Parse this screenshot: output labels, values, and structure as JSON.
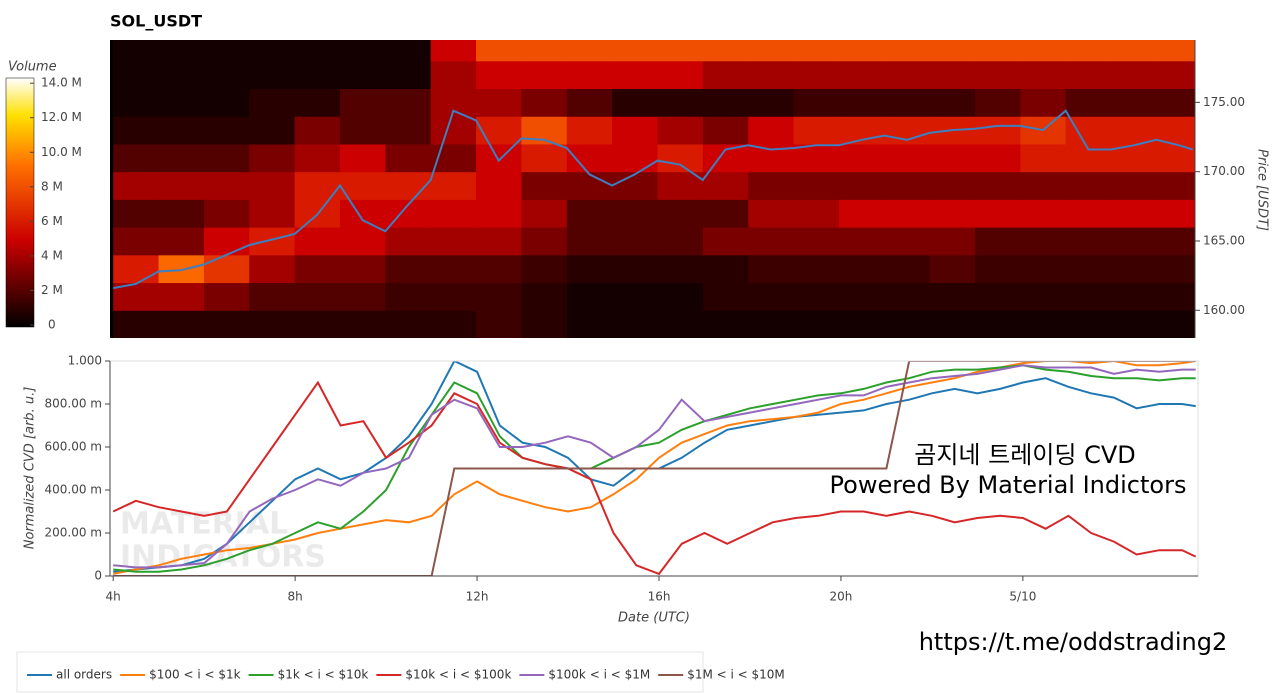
{
  "chart_data": [
    {
      "type": "heatmap",
      "title": "SOL_USDT",
      "y_label": "Price [USDT]",
      "xlim": [
        3.93,
        27.85
      ],
      "ylim": [
        158,
        179.5
      ],
      "yticks": [
        {
          "value": 160,
          "label": "160.00"
        },
        {
          "value": 165,
          "label": "165.00"
        },
        {
          "value": 170,
          "label": "170.00"
        },
        {
          "value": 175,
          "label": "175.00"
        }
      ],
      "time_bins": [
        4,
        5,
        6,
        7,
        8,
        9,
        10,
        11,
        12,
        13,
        14,
        15,
        16,
        17,
        18,
        19,
        20,
        21,
        22,
        23,
        24,
        25,
        26,
        27,
        28
      ],
      "price_bins": [
        158,
        160,
        162,
        164,
        166,
        168,
        170,
        172,
        174,
        176,
        178,
        180
      ],
      "volume": [
        [
          1,
          1,
          1,
          1,
          1,
          1,
          1,
          1,
          1.5,
          1,
          0.5,
          0.5,
          0.5,
          0.5,
          0.5,
          0.5,
          0.5,
          0.5,
          0.5,
          0.5,
          0.5,
          0.5,
          0.5,
          0.5
        ],
        [
          4,
          4,
          3,
          2,
          2,
          2,
          1.5,
          1.5,
          1.5,
          1,
          0.5,
          0.5,
          0.5,
          1,
          1,
          1,
          1,
          1,
          1,
          1,
          1,
          1,
          1,
          1
        ],
        [
          6,
          9,
          7,
          4,
          3,
          3,
          2,
          2,
          2,
          1.5,
          1,
          1,
          1,
          1,
          1.5,
          1.5,
          1.5,
          1.5,
          2,
          1.5,
          1.5,
          1.5,
          1.5,
          1.5
        ],
        [
          3,
          3,
          5,
          6,
          5,
          5,
          4,
          4,
          4,
          3,
          2,
          2,
          2,
          3,
          3,
          3,
          3,
          3,
          3,
          2,
          2,
          2,
          2,
          2
        ],
        [
          2,
          2,
          3,
          4,
          6,
          5,
          5,
          5,
          5,
          4,
          2,
          2,
          2,
          2,
          4,
          4,
          5,
          5,
          5,
          5,
          5,
          5,
          5,
          5
        ],
        [
          4,
          4,
          4,
          4,
          6,
          6,
          6,
          6,
          5,
          3,
          3,
          3,
          4,
          4,
          3,
          3,
          3,
          3,
          3,
          3,
          3,
          3,
          3,
          3
        ],
        [
          2,
          2,
          2,
          3,
          4,
          5,
          3,
          3,
          5,
          6,
          5,
          5,
          6,
          5,
          5,
          5,
          5,
          5,
          5,
          5,
          6,
          6,
          6,
          6
        ],
        [
          1,
          1,
          1,
          1,
          3,
          2,
          2,
          4,
          6,
          8,
          6,
          5,
          4,
          3,
          5,
          6,
          6,
          6,
          6,
          6,
          7,
          6,
          6,
          6
        ],
        [
          0.5,
          0.5,
          0.5,
          1,
          1,
          2,
          2,
          4,
          4,
          3,
          2,
          1,
          1,
          1,
          1,
          1.5,
          1.5,
          1.5,
          1.5,
          2,
          3,
          2,
          2,
          2
        ],
        [
          0.5,
          0.5,
          0.5,
          0.5,
          0.5,
          0.5,
          0.5,
          4,
          5,
          5,
          5,
          5,
          5,
          4,
          4,
          4,
          4,
          4,
          4,
          4,
          4,
          4,
          4,
          4
        ],
        [
          0.5,
          0.5,
          0.5,
          0.5,
          0.5,
          0.5,
          0.5,
          5,
          8,
          8,
          8,
          8,
          8,
          8,
          8,
          8,
          8,
          8,
          8,
          8,
          8,
          8,
          8,
          8
        ]
      ],
      "colorbar": {
        "label": "Volume",
        "lim": [
          0,
          14.3
        ],
        "ticks": [
          {
            "value": 0,
            "label": "0"
          },
          {
            "value": 2,
            "label": "2 M"
          },
          {
            "value": 4,
            "label": "4 M"
          },
          {
            "value": 6,
            "label": "6 M"
          },
          {
            "value": 8,
            "label": "8 M"
          },
          {
            "value": 10,
            "label": "10.0 M"
          },
          {
            "value": 12,
            "label": "12.0 M"
          },
          {
            "value": 14,
            "label": "14.0 M"
          }
        ]
      },
      "x": [
        4,
        4.5,
        5,
        5.5,
        6,
        6.5,
        7,
        7.5,
        8,
        8.5,
        9,
        9.5,
        10,
        10.5,
        11,
        11.5,
        12,
        12.5,
        13,
        13.5,
        14,
        14.5,
        15,
        15.5,
        16,
        16.5,
        17,
        17.5,
        18,
        18.5,
        19,
        19.5,
        20,
        20.5,
        21,
        21.5,
        22,
        22.5,
        23,
        23.5,
        24,
        24.5,
        25,
        25.5,
        26,
        26.5,
        27,
        27.5,
        27.8
      ],
      "series": [
        {
          "color": "#3d7fc1",
          "values": [
            161.6,
            161.9,
            162.8,
            162.9,
            163.3,
            164.0,
            164.7,
            165.1,
            165.5,
            166.9,
            169.0,
            166.5,
            165.7,
            167.6,
            169.4,
            174.4,
            173.7,
            170.8,
            172.4,
            172.3,
            171.7,
            169.8,
            169.0,
            169.8,
            170.8,
            170.5,
            169.4,
            171.6,
            171.9,
            171.6,
            171.7,
            171.9,
            171.9,
            172.3,
            172.6,
            172.3,
            172.8,
            173.0,
            173.1,
            173.3,
            173.3,
            173.0,
            174.4,
            171.6,
            171.6,
            171.9,
            172.3,
            171.9,
            171.6
          ]
        }
      ]
    },
    {
      "type": "line",
      "x_label": "Date (UTC)",
      "y_label": "Normalized CVD [arb. u.]",
      "xlim": [
        3.93,
        27.85
      ],
      "ylim": [
        0,
        1
      ],
      "xticks": [
        {
          "value": 4,
          "label": "4h"
        },
        {
          "value": 8,
          "label": "8h"
        },
        {
          "value": 12,
          "label": "12h"
        },
        {
          "value": 16,
          "label": "16h"
        },
        {
          "value": 20,
          "label": "20h"
        },
        {
          "value": 24,
          "label": "5/10"
        }
      ],
      "yticks": [
        0,
        {
          "value": 0.2,
          "label": "200.00 m"
        },
        {
          "value": 0.4,
          "label": "400.00 m"
        },
        {
          "value": 0.6,
          "label": "600.00 m"
        },
        {
          "value": 0.8,
          "label": "800.00 m"
        },
        {
          "value": 1,
          "label": "1.000"
        }
      ],
      "x": [
        4,
        4.5,
        5,
        5.5,
        6,
        6.5,
        7,
        7.5,
        8,
        8.5,
        9,
        9.5,
        10,
        10.5,
        11,
        11.5,
        12,
        12.5,
        13,
        13.5,
        14,
        14.5,
        15,
        15.5,
        16,
        16.5,
        17,
        17.5,
        18,
        18.5,
        19,
        19.5,
        20,
        20.5,
        21,
        21.5,
        22,
        22.5,
        23,
        23.5,
        24,
        24.5,
        25,
        25.5,
        26,
        26.5,
        27,
        27.5,
        27.8
      ],
      "series": [
        {
          "name": "all orders",
          "color": "#1f77b4",
          "values": [
            0.02,
            0.03,
            0.04,
            0.05,
            0.08,
            0.15,
            0.25,
            0.35,
            0.45,
            0.5,
            0.45,
            0.48,
            0.55,
            0.65,
            0.8,
            1.0,
            0.95,
            0.7,
            0.62,
            0.6,
            0.55,
            0.45,
            0.42,
            0.5,
            0.5,
            0.55,
            0.62,
            0.68,
            0.7,
            0.72,
            0.74,
            0.75,
            0.76,
            0.77,
            0.8,
            0.82,
            0.85,
            0.87,
            0.85,
            0.87,
            0.9,
            0.92,
            0.88,
            0.85,
            0.83,
            0.78,
            0.8,
            0.8,
            0.79
          ]
        },
        {
          "name": "$100 < i < $1k",
          "color": "#ff7f0e",
          "values": [
            0.01,
            0.03,
            0.05,
            0.08,
            0.1,
            0.12,
            0.13,
            0.15,
            0.17,
            0.2,
            0.22,
            0.24,
            0.26,
            0.25,
            0.28,
            0.38,
            0.44,
            0.38,
            0.35,
            0.32,
            0.3,
            0.32,
            0.38,
            0.45,
            0.55,
            0.62,
            0.66,
            0.7,
            0.72,
            0.73,
            0.74,
            0.76,
            0.8,
            0.82,
            0.85,
            0.88,
            0.9,
            0.92,
            0.95,
            0.97,
            0.99,
            1.0,
            1.0,
            0.99,
            1.0,
            0.98,
            0.98,
            0.99,
            1.0
          ]
        },
        {
          "name": "$1k < i < $10k",
          "color": "#2ca02c",
          "values": [
            0.03,
            0.02,
            0.02,
            0.03,
            0.05,
            0.08,
            0.12,
            0.15,
            0.2,
            0.25,
            0.22,
            0.3,
            0.4,
            0.6,
            0.75,
            0.9,
            0.85,
            0.65,
            0.55,
            0.52,
            0.5,
            0.5,
            0.55,
            0.6,
            0.62,
            0.68,
            0.72,
            0.75,
            0.78,
            0.8,
            0.82,
            0.84,
            0.85,
            0.87,
            0.9,
            0.92,
            0.95,
            0.96,
            0.96,
            0.97,
            0.98,
            0.96,
            0.95,
            0.93,
            0.92,
            0.92,
            0.91,
            0.92,
            0.92
          ]
        },
        {
          "name": "$10k < i < $100k",
          "color": "#d62728",
          "values": [
            0.3,
            0.35,
            0.32,
            0.3,
            0.28,
            0.3,
            0.45,
            0.6,
            0.75,
            0.9,
            0.7,
            0.72,
            0.55,
            0.62,
            0.7,
            0.85,
            0.8,
            0.62,
            0.55,
            0.52,
            0.5,
            0.45,
            0.2,
            0.05,
            0.01,
            0.15,
            0.2,
            0.15,
            0.2,
            0.25,
            0.27,
            0.28,
            0.3,
            0.3,
            0.28,
            0.3,
            0.28,
            0.25,
            0.27,
            0.28,
            0.27,
            0.22,
            0.28,
            0.2,
            0.16,
            0.1,
            0.12,
            0.12,
            0.09
          ]
        },
        {
          "name": "$100k < i < $1M",
          "color": "#9467bd",
          "values": [
            0.05,
            0.04,
            0.04,
            0.05,
            0.06,
            0.15,
            0.3,
            0.36,
            0.4,
            0.45,
            0.42,
            0.48,
            0.5,
            0.55,
            0.75,
            0.82,
            0.78,
            0.6,
            0.6,
            0.62,
            0.65,
            0.62,
            0.55,
            0.6,
            0.68,
            0.82,
            0.72,
            0.74,
            0.76,
            0.78,
            0.8,
            0.82,
            0.84,
            0.84,
            0.88,
            0.9,
            0.92,
            0.93,
            0.94,
            0.96,
            0.98,
            0.97,
            0.97,
            0.97,
            0.94,
            0.96,
            0.95,
            0.96,
            0.96
          ]
        },
        {
          "name": "$1M < i < $10M",
          "color": "#8c564b",
          "values": [
            0,
            0,
            0,
            0,
            0,
            0,
            0,
            0,
            0,
            0,
            0,
            0,
            0,
            0,
            0,
            0.5,
            0.5,
            0.5,
            0.5,
            0.5,
            0.5,
            0.5,
            0.5,
            0.5,
            0.5,
            0.5,
            0.5,
            0.5,
            0.5,
            0.5,
            0.5,
            0.5,
            0.5,
            0.5,
            0.5,
            1,
            1,
            1,
            1,
            1,
            1,
            1,
            1,
            1,
            1,
            1,
            1,
            1,
            1
          ]
        }
      ],
      "annotations": [
        "곰지네 트레이딩 CVD",
        "Powered By Material Indictors",
        "https://t.me/oddstrading2"
      ],
      "watermark": [
        "MATERIAL",
        "INDICATORS"
      ]
    }
  ]
}
